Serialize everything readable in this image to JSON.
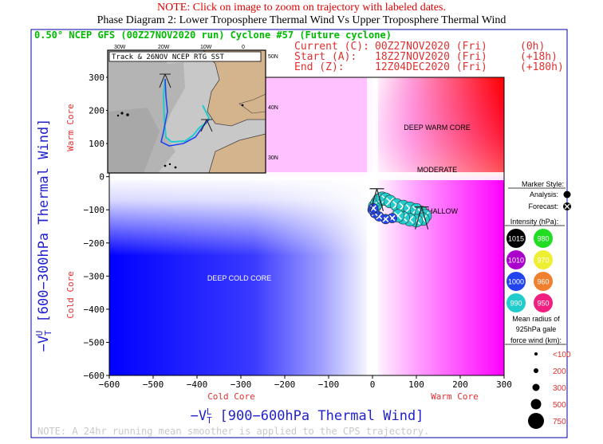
{
  "header": {
    "note": "NOTE: Click on image to zoom on trajectory with labeled dates.",
    "title": "Phase Diagram 2: Lower Troposphere Thermal Wind Vs Upper Troposphere Thermal Wind"
  },
  "chart_title": "0.50° NCEP GFS (00Z27NOV2020 run) Cyclone #57 (Future cyclone)",
  "times": {
    "current": {
      "label": "Current (C):",
      "value": "00Z27NOV2020 (Fri)",
      "hour": "(0h)"
    },
    "start": {
      "label": "Start (A):",
      "value": "18Z27NOV2020 (Fri)",
      "hour": "(+18h)"
    },
    "end": {
      "label": "End (Z):",
      "value": "12Z04DEC2020 (Fri)",
      "hour": "(+180h)"
    }
  },
  "inset": {
    "title": "Track & 26NOV NCEP RTG SST",
    "lon_labels": [
      "30W",
      "20W",
      "10W",
      "0"
    ],
    "lat_labels": [
      "50N",
      "40N",
      "30N"
    ]
  },
  "quadrants": {
    "deep_warm_core": "DEEP WARM CORE",
    "moderate": "MODERATE",
    "shallow": "SHALLOW",
    "deep_cold_core": "DEEP COLD CORE"
  },
  "axes": {
    "xlabel": "-V_T^L [900-600hPa Thermal Wind]",
    "xlabel_main": "−V",
    "xlabel_sub": "T",
    "xlabel_sup": "L",
    "xlabel_rest": " [900−600hPa Thermal Wind]",
    "ylabel_main": "−V",
    "ylabel_sub": "T",
    "ylabel_sup": "U",
    "ylabel_rest": " [600−300hPa Thermal Wind]",
    "x_side_left": "Cold Core",
    "x_side_right": "Warm Core",
    "y_side_top": "Warm Core",
    "y_side_bottom": "Cold Core"
  },
  "legend": {
    "marker_style": "Marker Style:",
    "analysis": "Analysis:",
    "forecast": "Forecast:",
    "intensity": "Intensity (hPa):",
    "intensity_items": [
      {
        "label": "1015",
        "color": "#000000"
      },
      {
        "label": "980",
        "color": "#22dd22"
      },
      {
        "label": "1010",
        "color": "#aa00cc"
      },
      {
        "label": "970",
        "color": "#eeee33"
      },
      {
        "label": "1000",
        "color": "#2244ee"
      },
      {
        "label": "960",
        "color": "#f08030"
      },
      {
        "label": "990",
        "color": "#22cccc"
      },
      {
        "label": "950",
        "color": "#f02080"
      }
    ],
    "radius_title_1": "Mean radius of",
    "radius_title_2": "925hPa gale",
    "radius_title_3": "force wind (km):",
    "radius_items": [
      "<100",
      "200",
      "300",
      "500",
      "750"
    ]
  },
  "footer_note": "NOTE: A 24hr running mean smoother is applied to the CPS trajectory.",
  "chart_data": {
    "type": "scatter",
    "title": "Phase Diagram 2: Lower Troposphere Thermal Wind Vs Upper Troposphere Thermal Wind",
    "xlabel": "-V_T^L [900-600hPa Thermal Wind]",
    "ylabel": "-V_T^U [600-300hPa Thermal Wind]",
    "xlim": [
      -600,
      300
    ],
    "ylim": [
      -600,
      300
    ],
    "x_ticks": [
      -600,
      -500,
      -400,
      -300,
      -200,
      -100,
      0,
      100,
      200,
      300
    ],
    "y_ticks": [
      300,
      200,
      100,
      0,
      -100,
      -200,
      -300,
      -400,
      -500,
      -600
    ],
    "trajectory": {
      "x": [
        5,
        10,
        15,
        22,
        30,
        40,
        55,
        70,
        85,
        100,
        112,
        120,
        115,
        100,
        85,
        70,
        58,
        45,
        30,
        15,
        5,
        0,
        2
      ],
      "y": [
        -90,
        -80,
        -70,
        -65,
        -68,
        -75,
        -85,
        -90,
        -95,
        -100,
        -108,
        -118,
        -128,
        -133,
        -130,
        -124,
        -118,
        -125,
        -128,
        -120,
        -110,
        -100,
        -95
      ],
      "colors": [
        "#22cccc",
        "#22cccc",
        "#22cccc",
        "#22cccc",
        "#22cccc",
        "#22cccc",
        "#22cccc",
        "#22cccc",
        "#22cccc",
        "#22cccc",
        "#22cccc",
        "#22cccc",
        "#22cccc",
        "#22cccc",
        "#22cccc",
        "#22cccc",
        "#22cccc",
        "#2244ee",
        "#2244ee",
        "#2244ee",
        "#2244ee",
        "#2244ee",
        "#2244ee"
      ],
      "sizes": [
        300,
        300,
        300,
        300,
        300,
        300,
        300,
        300,
        300,
        300,
        300,
        300,
        300,
        300,
        300,
        300,
        300,
        200,
        200,
        200,
        200,
        200,
        200
      ]
    },
    "markers": {
      "start_A": {
        "x": 112,
        "y": -125
      },
      "end_Z": {
        "x": 10,
        "y": -70
      }
    }
  }
}
